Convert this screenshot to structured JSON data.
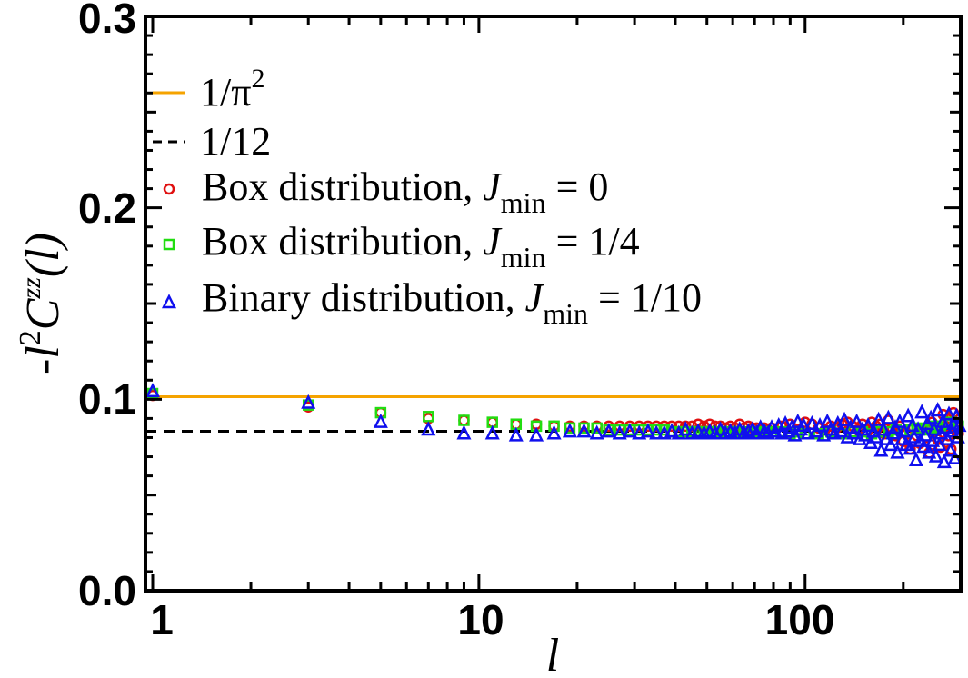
{
  "chart_data": {
    "type": "scatter",
    "x_scale": "log",
    "xlim": [
      0.95,
      300
    ],
    "ylim": [
      0.0,
      0.3
    ],
    "x_ticks": [
      {
        "value": 1,
        "label": "1"
      },
      {
        "value": 10,
        "label": "10"
      },
      {
        "value": 100,
        "label": "100"
      }
    ],
    "y_ticks": [
      {
        "value": 0.0,
        "label": "0.0"
      },
      {
        "value": 0.1,
        "label": "0.1"
      },
      {
        "value": 0.2,
        "label": "0.2"
      },
      {
        "value": 0.3,
        "label": "0.3"
      }
    ],
    "xlabel": "l",
    "ylabel": {
      "prefix": "-l",
      "power": "2",
      "symbol": "C",
      "superscript": "zz",
      "suffix": "(l)"
    },
    "grid": false,
    "legend_position": "top-left",
    "reference_lines": [
      {
        "name": "1/π",
        "name_superscript": "2",
        "value": 0.10132,
        "color": "#f5a300",
        "dash": "solid"
      },
      {
        "name": "1/12",
        "value": 0.08333,
        "color": "#000000",
        "dash": "dashed"
      }
    ],
    "series": [
      {
        "name": "Box distribution, ",
        "name_var": "J",
        "name_sub": "min",
        "name_tail": " = 0",
        "marker": "circle",
        "color": "#e01010",
        "x": [
          1,
          3,
          5,
          7,
          9,
          11,
          13,
          15,
          17,
          19,
          21,
          23,
          25,
          27,
          29,
          31,
          33,
          35,
          37,
          39,
          41,
          43,
          45,
          47,
          49,
          51,
          53,
          55,
          57,
          59,
          61,
          63,
          65,
          67,
          69,
          71,
          73,
          75,
          77,
          79,
          85,
          90,
          95,
          100,
          105,
          110,
          115,
          120,
          125,
          130,
          135,
          140,
          145,
          150,
          155,
          160,
          165,
          170,
          175,
          180,
          185,
          190,
          195,
          200,
          205,
          210,
          215,
          220,
          225,
          230,
          235,
          240,
          245,
          250,
          255,
          260,
          265,
          270,
          275,
          280,
          285,
          290,
          295
        ],
        "y": [
          0.102,
          0.096,
          0.093,
          0.09,
          0.089,
          0.088,
          0.087,
          0.087,
          0.086,
          0.086,
          0.086,
          0.086,
          0.086,
          0.086,
          0.086,
          0.086,
          0.086,
          0.086,
          0.086,
          0.086,
          0.086,
          0.086,
          0.086,
          0.087,
          0.086,
          0.087,
          0.086,
          0.086,
          0.085,
          0.086,
          0.085,
          0.087,
          0.085,
          0.086,
          0.085,
          0.085,
          0.084,
          0.085,
          0.084,
          0.085,
          0.086,
          0.087,
          0.084,
          0.088,
          0.087,
          0.085,
          0.084,
          0.086,
          0.085,
          0.087,
          0.088,
          0.086,
          0.084,
          0.087,
          0.083,
          0.088,
          0.086,
          0.087,
          0.082,
          0.089,
          0.085,
          0.081,
          0.086,
          0.078,
          0.082,
          0.074,
          0.085,
          0.081,
          0.077,
          0.084,
          0.08,
          0.072,
          0.088,
          0.085,
          0.079,
          0.075,
          0.092,
          0.086,
          0.081,
          0.074,
          0.093,
          0.084,
          0.082
        ]
      },
      {
        "name": "Box distribution, ",
        "name_var": "J",
        "name_sub": "min",
        "name_tail": " = 1/4",
        "marker": "square",
        "color": "#22dd11",
        "x": [
          1,
          3,
          5,
          7,
          9,
          11,
          13,
          15,
          17,
          19,
          21,
          23,
          25,
          27,
          29,
          31,
          33,
          35,
          37,
          39,
          41,
          43,
          45,
          47,
          49,
          51,
          53,
          55,
          57,
          59,
          61,
          63,
          65,
          67,
          69,
          71,
          73,
          75,
          77,
          79,
          85,
          90,
          95,
          100,
          110,
          120,
          130,
          140,
          150,
          160,
          170,
          180,
          190,
          200,
          210,
          220,
          230,
          240,
          250,
          260,
          270,
          280,
          290,
          295
        ],
        "y": [
          0.103,
          0.097,
          0.093,
          0.091,
          0.089,
          0.088,
          0.087,
          0.086,
          0.086,
          0.085,
          0.085,
          0.085,
          0.084,
          0.084,
          0.084,
          0.084,
          0.084,
          0.084,
          0.084,
          0.083,
          0.083,
          0.083,
          0.083,
          0.083,
          0.083,
          0.083,
          0.083,
          0.083,
          0.083,
          0.083,
          0.083,
          0.083,
          0.082,
          0.083,
          0.083,
          0.083,
          0.082,
          0.083,
          0.082,
          0.083,
          0.083,
          0.082,
          0.083,
          0.082,
          0.082,
          0.083,
          0.082,
          0.083,
          0.083,
          0.082,
          0.083,
          0.083,
          0.084,
          0.083,
          0.084,
          0.085,
          0.084,
          0.085,
          0.086,
          0.085,
          0.087,
          0.088,
          0.087,
          0.086
        ]
      },
      {
        "name": "Binary distribution, ",
        "name_var": "J",
        "name_sub": "min",
        "name_tail": " = 1/10",
        "marker": "triangle",
        "color": "#1010ee",
        "x": [
          1,
          3,
          5,
          7,
          9,
          11,
          13,
          15,
          17,
          19,
          21,
          23,
          25,
          27,
          29,
          31,
          33,
          35,
          37,
          39,
          41,
          43,
          45,
          47,
          49,
          51,
          53,
          55,
          57,
          59,
          61,
          63,
          65,
          67,
          69,
          71,
          73,
          75,
          77,
          79,
          81,
          83,
          85,
          87,
          89,
          91,
          93,
          95,
          97,
          99,
          102,
          105,
          108,
          111,
          114,
          117,
          120,
          123,
          126,
          129,
          132,
          135,
          138,
          141,
          144,
          147,
          150,
          153,
          156,
          159,
          162,
          165,
          168,
          171,
          174,
          177,
          180,
          183,
          186,
          189,
          192,
          195,
          198,
          201,
          204,
          207,
          210,
          213,
          216,
          219,
          222,
          225,
          228,
          231,
          234,
          237,
          240,
          243,
          246,
          249,
          252,
          255,
          258,
          261,
          264,
          267,
          270,
          273,
          276,
          279,
          282,
          285,
          288,
          291,
          294,
          297
        ],
        "y": [
          0.104,
          0.098,
          0.088,
          0.084,
          0.082,
          0.082,
          0.081,
          0.081,
          0.082,
          0.083,
          0.083,
          0.082,
          0.083,
          0.082,
          0.083,
          0.082,
          0.083,
          0.082,
          0.082,
          0.083,
          0.082,
          0.084,
          0.082,
          0.083,
          0.082,
          0.083,
          0.082,
          0.084,
          0.082,
          0.083,
          0.082,
          0.084,
          0.082,
          0.083,
          0.084,
          0.082,
          0.085,
          0.083,
          0.082,
          0.085,
          0.083,
          0.086,
          0.082,
          0.087,
          0.083,
          0.085,
          0.081,
          0.088,
          0.084,
          0.086,
          0.082,
          0.087,
          0.083,
          0.086,
          0.081,
          0.088,
          0.084,
          0.082,
          0.087,
          0.083,
          0.089,
          0.08,
          0.085,
          0.082,
          0.088,
          0.079,
          0.084,
          0.081,
          0.086,
          0.077,
          0.083,
          0.08,
          0.089,
          0.073,
          0.084,
          0.079,
          0.09,
          0.076,
          0.082,
          0.085,
          0.072,
          0.088,
          0.079,
          0.083,
          0.076,
          0.091,
          0.074,
          0.086,
          0.08,
          0.068,
          0.084,
          0.078,
          0.093,
          0.075,
          0.081,
          0.087,
          0.072,
          0.09,
          0.078,
          0.084,
          0.07,
          0.094,
          0.076,
          0.082,
          0.088,
          0.067,
          0.085,
          0.079,
          0.092,
          0.073,
          0.083,
          0.087,
          0.069,
          0.091,
          0.08,
          0.086
        ]
      }
    ]
  }
}
